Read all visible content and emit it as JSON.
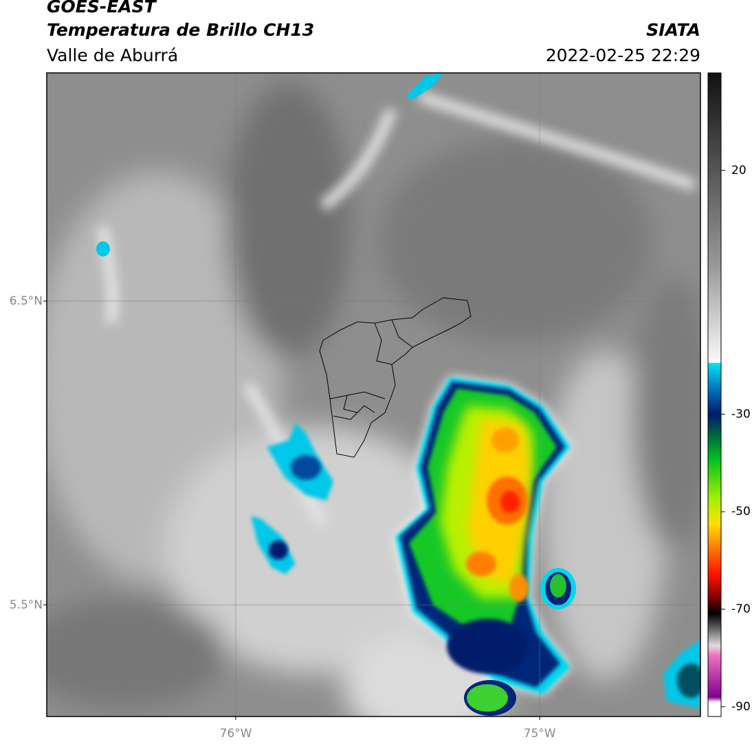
{
  "header": {
    "title": "GOES-EAST",
    "product": "Temperatura de Brillo CH13",
    "region": "Valle de Aburrá",
    "source": "SIATA",
    "datetime": "2022-02-25 22:29"
  },
  "map": {
    "xlim": [
      -76.622,
      -74.471
    ],
    "ylim": [
      5.133,
      7.251
    ],
    "xticks": [
      {
        "value": -76,
        "label": "76°W"
      },
      {
        "value": -75,
        "label": "75°W"
      }
    ],
    "yticks": [
      {
        "value": 6.5,
        "label": "6.5°N"
      },
      {
        "value": 5.5,
        "label": "5.5°N"
      }
    ],
    "grid": true
  },
  "colorbar": {
    "lim": [
      -92,
      40
    ],
    "ticks": [
      20,
      -30,
      -50,
      -70,
      -90
    ]
  }
}
